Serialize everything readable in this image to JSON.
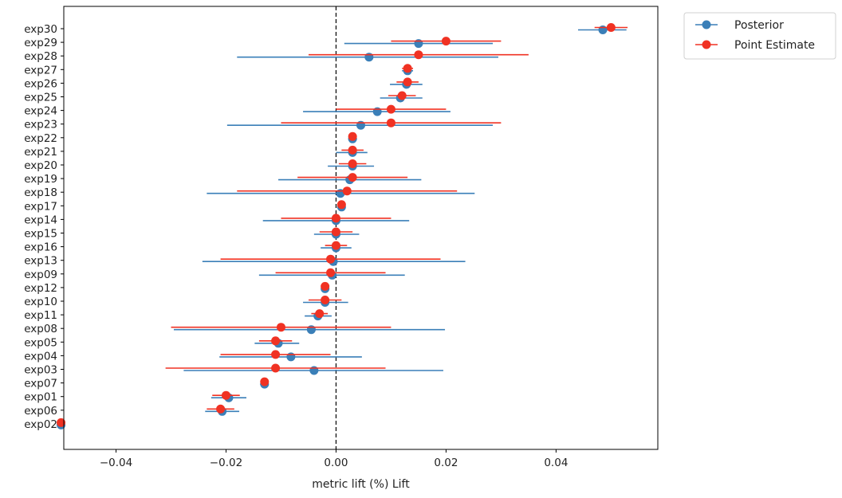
{
  "chart_data": {
    "type": "scatter",
    "title": "",
    "xlabel": "metric lift (%) Lift",
    "ylabel": "",
    "xlim": [
      -0.0495,
      0.0585
    ],
    "xticks": [
      -0.04,
      -0.02,
      0.0,
      0.02,
      0.04
    ],
    "xtick_labels": [
      "−0.04",
      "−0.02",
      "0.00",
      "0.02",
      "0.04"
    ],
    "reference_line_x": 0,
    "grid": false,
    "legend_position": "outside-top-right",
    "colors": {
      "posterior": "#3a7fb8",
      "point": "#f03223"
    },
    "categories": [
      "exp30",
      "exp29",
      "exp28",
      "exp27",
      "exp26",
      "exp25",
      "exp24",
      "exp23",
      "exp22",
      "exp21",
      "exp20",
      "exp19",
      "exp18",
      "exp17",
      "exp14",
      "exp15",
      "exp16",
      "exp13",
      "exp09",
      "exp12",
      "exp10",
      "exp11",
      "exp08",
      "exp05",
      "exp04",
      "exp03",
      "exp07",
      "exp01",
      "exp06",
      "exp02"
    ],
    "series": [
      {
        "name": "Posterior",
        "values": [
          0.0485,
          0.015,
          0.006,
          0.013,
          0.0128,
          0.0117,
          0.0075,
          0.0045,
          0.003,
          0.003,
          0.003,
          0.0025,
          0.0008,
          0.001,
          0.0,
          0.0,
          0.0,
          -0.0005,
          -0.0007,
          -0.002,
          -0.002,
          -0.0033,
          -0.0045,
          -0.0105,
          -0.0082,
          -0.004,
          -0.013,
          -0.0195,
          -0.0207,
          -0.05
        ],
        "lower": [
          0.044,
          0.0015,
          -0.018,
          0.012,
          0.0098,
          0.008,
          -0.006,
          -0.0198,
          0.0022,
          0.0,
          -0.0015,
          -0.0105,
          -0.0235,
          0.0003,
          -0.0133,
          -0.004,
          -0.0028,
          -0.0243,
          -0.014,
          -0.0025,
          -0.006,
          -0.0057,
          -0.0295,
          -0.0148,
          -0.0212,
          -0.0277,
          -0.0138,
          -0.0227,
          -0.0238,
          -0.0505
        ],
        "upper": [
          0.0528,
          0.0285,
          0.0295,
          0.014,
          0.0157,
          0.0157,
          0.0208,
          0.0285,
          0.0038,
          0.0057,
          0.0069,
          0.0155,
          0.0252,
          0.0017,
          0.0133,
          0.0042,
          0.0028,
          0.0235,
          0.0125,
          -0.0015,
          0.0022,
          -0.0008,
          0.0198,
          -0.0067,
          0.0047,
          0.0195,
          -0.0123,
          -0.0163,
          -0.0176,
          -0.0495
        ]
      },
      {
        "name": "Point Estimate",
        "values": [
          0.05,
          0.02,
          0.015,
          0.013,
          0.013,
          0.012,
          0.01,
          0.01,
          0.003,
          0.003,
          0.003,
          0.003,
          0.002,
          0.001,
          0.0,
          0.0,
          0.0,
          -0.001,
          -0.001,
          -0.002,
          -0.002,
          -0.003,
          -0.01,
          -0.011,
          -0.011,
          -0.011,
          -0.013,
          -0.02,
          -0.021,
          -0.05
        ],
        "lower": [
          0.047,
          0.01,
          -0.005,
          0.012,
          0.011,
          0.0095,
          0.0,
          -0.01,
          0.0025,
          0.001,
          0.0005,
          -0.007,
          -0.018,
          0.0005,
          -0.01,
          -0.003,
          -0.002,
          -0.021,
          -0.011,
          -0.0025,
          -0.005,
          -0.0045,
          -0.03,
          -0.014,
          -0.021,
          -0.031,
          -0.0135,
          -0.0225,
          -0.0235,
          -0.0505
        ],
        "upper": [
          0.053,
          0.03,
          0.035,
          0.014,
          0.015,
          0.0145,
          0.02,
          0.03,
          0.0035,
          0.005,
          0.0055,
          0.013,
          0.022,
          0.0015,
          0.01,
          0.003,
          0.002,
          0.019,
          0.009,
          -0.0015,
          0.001,
          -0.0015,
          0.01,
          -0.008,
          -0.001,
          0.009,
          -0.0125,
          -0.0175,
          -0.0185,
          -0.0495
        ]
      }
    ]
  }
}
